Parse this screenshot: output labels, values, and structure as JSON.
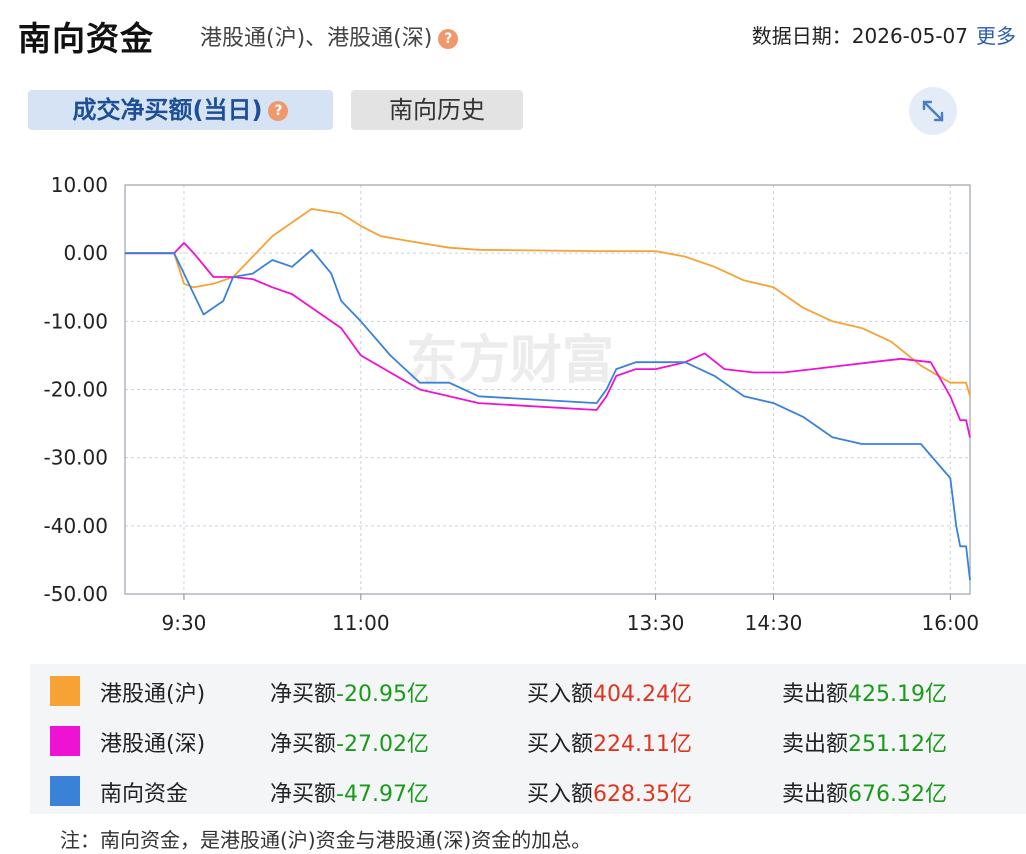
{
  "header": {
    "title": "南向资金",
    "subtitle": "港股通(沪)、港股通(深)",
    "help_glyph": "?",
    "date_label": "数据日期：",
    "date_value": "2026-05-07",
    "more_label": "更多"
  },
  "tabs": [
    {
      "label": "成交净买额(当日)",
      "active": true
    },
    {
      "label": "南向历史",
      "active": false
    }
  ],
  "icons": {
    "help": "question-circle-icon",
    "expand": "expand-arrows-icon"
  },
  "colors": {
    "sh": "#f7a234",
    "sz": "#ee12d2",
    "total": "#3a82d8",
    "green": "#1a9a1a",
    "red": "#e0341f"
  },
  "watermark": "东方财富",
  "chart_data": {
    "type": "line",
    "x_ticks": [
      "9:30",
      "11:00",
      "13:30",
      "14:30",
      "16:00"
    ],
    "y_ticks": [
      "10.00",
      "0.00",
      "-10.00",
      "-20.00",
      "-30.00",
      "-40.00",
      "-50.00"
    ],
    "ylim": [
      -50,
      10
    ],
    "grid": true,
    "note_axis": "x axis in trading minutes; 9:00-12:00 morning session, 13:00-16:10 afternoon session",
    "series": [
      {
        "name": "港股通(沪)",
        "color": "#f7a234",
        "points": [
          [
            "9:00",
            0
          ],
          [
            "9:25",
            0
          ],
          [
            "9:30",
            -4.5
          ],
          [
            "9:35",
            -5
          ],
          [
            "9:45",
            -4.5
          ],
          [
            "9:55",
            -3.5
          ],
          [
            "10:05",
            -0.5
          ],
          [
            "10:15",
            2.5
          ],
          [
            "10:25",
            4.5
          ],
          [
            "10:35",
            6.5
          ],
          [
            "10:50",
            5.8
          ],
          [
            "11:00",
            4
          ],
          [
            "11:10",
            2.5
          ],
          [
            "11:20",
            2
          ],
          [
            "11:30",
            1.5
          ],
          [
            "11:45",
            0.8
          ],
          [
            "12:00",
            0.5
          ],
          [
            "13:00",
            0.3
          ],
          [
            "13:30",
            0.3
          ],
          [
            "13:45",
            -0.5
          ],
          [
            "14:00",
            -2
          ],
          [
            "14:15",
            -4
          ],
          [
            "14:30",
            -5
          ],
          [
            "14:45",
            -8
          ],
          [
            "15:00",
            -10
          ],
          [
            "15:15",
            -11
          ],
          [
            "15:30",
            -13
          ],
          [
            "15:45",
            -16.5
          ],
          [
            "16:00",
            -19
          ],
          [
            "16:08",
            -19
          ],
          [
            "16:10",
            -20.95
          ]
        ]
      },
      {
        "name": "港股通(深)",
        "color": "#ee12d2",
        "points": [
          [
            "9:00",
            0
          ],
          [
            "9:25",
            0
          ],
          [
            "9:30",
            1.5
          ],
          [
            "9:35",
            0
          ],
          [
            "9:45",
            -3.5
          ],
          [
            "9:55",
            -3.5
          ],
          [
            "10:05",
            -3.8
          ],
          [
            "10:15",
            -5
          ],
          [
            "10:25",
            -6
          ],
          [
            "10:40",
            -9
          ],
          [
            "10:50",
            -11
          ],
          [
            "11:00",
            -15
          ],
          [
            "11:15",
            -17.5
          ],
          [
            "11:30",
            -20
          ],
          [
            "11:45",
            -21
          ],
          [
            "12:00",
            -22
          ],
          [
            "13:00",
            -23
          ],
          [
            "13:05",
            -21
          ],
          [
            "13:10",
            -18
          ],
          [
            "13:20",
            -17
          ],
          [
            "13:30",
            -17
          ],
          [
            "13:45",
            -16
          ],
          [
            "13:55",
            -14.7
          ],
          [
            "14:05",
            -17
          ],
          [
            "14:20",
            -17.5
          ],
          [
            "14:35",
            -17.5
          ],
          [
            "14:50",
            -17
          ],
          [
            "15:05",
            -16.5
          ],
          [
            "15:20",
            -16
          ],
          [
            "15:35",
            -15.5
          ],
          [
            "15:50",
            -16
          ],
          [
            "16:00",
            -21
          ],
          [
            "16:05",
            -24.5
          ],
          [
            "16:08",
            -24.5
          ],
          [
            "16:10",
            -27.02
          ]
        ]
      },
      {
        "name": "南向资金",
        "color": "#3a82d8",
        "points": [
          [
            "9:00",
            0
          ],
          [
            "9:25",
            0
          ],
          [
            "9:30",
            -3
          ],
          [
            "9:35",
            -6
          ],
          [
            "9:40",
            -9
          ],
          [
            "9:50",
            -7
          ],
          [
            "9:55",
            -3.5
          ],
          [
            "10:05",
            -3
          ],
          [
            "10:15",
            -1
          ],
          [
            "10:25",
            -2
          ],
          [
            "10:35",
            0.5
          ],
          [
            "10:45",
            -3
          ],
          [
            "10:50",
            -7
          ],
          [
            "11:00",
            -10
          ],
          [
            "11:15",
            -15
          ],
          [
            "11:30",
            -19
          ],
          [
            "11:45",
            -19
          ],
          [
            "12:00",
            -21
          ],
          [
            "13:00",
            -22
          ],
          [
            "13:05",
            -20
          ],
          [
            "13:10",
            -17
          ],
          [
            "13:20",
            -16
          ],
          [
            "13:30",
            -16
          ],
          [
            "13:45",
            -16
          ],
          [
            "14:00",
            -18
          ],
          [
            "14:15",
            -21
          ],
          [
            "14:30",
            -22
          ],
          [
            "14:45",
            -24
          ],
          [
            "15:00",
            -27
          ],
          [
            "15:15",
            -28
          ],
          [
            "15:30",
            -28
          ],
          [
            "15:45",
            -28
          ],
          [
            "16:00",
            -33
          ],
          [
            "16:03",
            -40
          ],
          [
            "16:05",
            -43
          ],
          [
            "16:08",
            -43
          ],
          [
            "16:10",
            -47.97
          ]
        ]
      }
    ]
  },
  "legend": [
    {
      "name": "港股通(沪)",
      "net_label": "净买额",
      "net_value": "-20.95亿",
      "buy_label": "买入额",
      "buy_value": "404.24亿",
      "sell_label": "卖出额",
      "sell_value": "425.19亿",
      "color": "#f7a234"
    },
    {
      "name": "港股通(深)",
      "net_label": "净买额",
      "net_value": "-27.02亿",
      "buy_label": "买入额",
      "buy_value": "224.11亿",
      "sell_label": "卖出额",
      "sell_value": "251.12亿",
      "color": "#ee12d2"
    },
    {
      "name": "南向资金",
      "net_label": "净买额",
      "net_value": "-47.97亿",
      "buy_label": "买入额",
      "buy_value": "628.35亿",
      "sell_label": "卖出额",
      "sell_value": "676.32亿",
      "color": "#3a82d8"
    }
  ],
  "note": "注：南向资金，是港股通(沪)资金与港股通(深)资金的加总。"
}
